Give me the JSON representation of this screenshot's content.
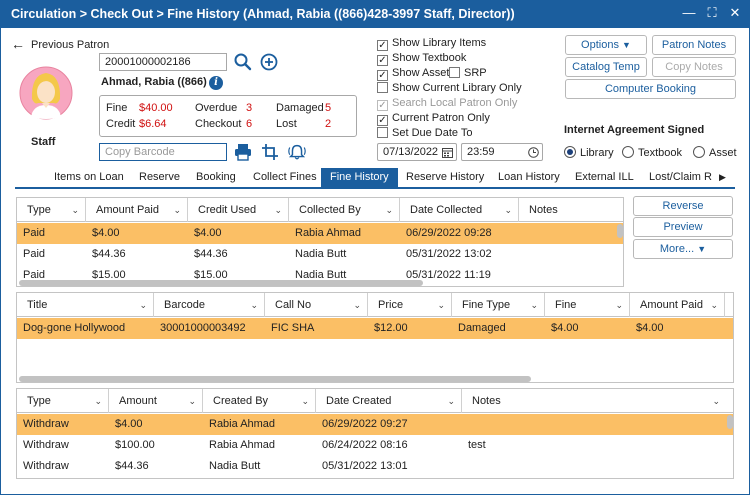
{
  "window": {
    "title": "Circulation > Check Out > Fine History (Ahmad, Rabia ((866)428-3997  Staff, Director))"
  },
  "nav": {
    "previous_patron": "Previous Patron"
  },
  "patron": {
    "barcode": "20001000002186",
    "name": "Ahmad, Rabia ((866)",
    "type": "Staff",
    "fine_label": "Fine",
    "fine_value": "$40.00",
    "credit_label": "Credit",
    "credit_value": "$6.64",
    "overdue_label": "Overdue",
    "overdue_value": "3",
    "checkout_label": "Checkout",
    "checkout_value": "6",
    "damaged_label": "Damaged",
    "damaged_value": "5",
    "lost_label": "Lost",
    "lost_value": "2",
    "copy_barcode_placeholder": "Copy Barcode"
  },
  "options": {
    "show_library_items": "Show Library Items",
    "show_textbook": "Show Textbook",
    "show_asset": "Show Asset",
    "srp": "SRP",
    "show_current_library_only": "Show Current Library Only",
    "search_local_patron_only": "Search Local Patron Only",
    "current_patron_only": "Current Patron Only",
    "set_due_date_to": "Set Due Date To",
    "due_date": "07/13/2022",
    "due_time": "23:59"
  },
  "buttons": {
    "options": "Options",
    "patron_notes": "Patron Notes",
    "catalog_temp": "Catalog Temp",
    "copy_notes": "Copy Notes",
    "computer_booking": "Computer Booking",
    "reverse": "Reverse",
    "preview": "Preview",
    "more": "More..."
  },
  "internet_agreement": {
    "title": "Internet Agreement Signed",
    "options": [
      "Library",
      "Textbook",
      "Asset"
    ],
    "selected": "Library"
  },
  "tabs": [
    "Items on Loan",
    "Reserve",
    "Booking",
    "Collect Fines",
    "Fine History",
    "Reserve History",
    "Loan History",
    "External ILL",
    "Lost/Claim R"
  ],
  "active_tab": "Fine History",
  "fine_table": {
    "columns": [
      "Type",
      "Amount Paid",
      "Credit Used",
      "Collected By",
      "Date Collected",
      "Notes"
    ],
    "rows": [
      [
        "Paid",
        "$4.00",
        "$4.00",
        "Rabia Ahmad",
        "06/29/2022 09:28",
        ""
      ],
      [
        "Paid",
        "$44.36",
        "$44.36",
        "Nadia Butt",
        "05/31/2022 13:02",
        ""
      ],
      [
        "Paid",
        "$15.00",
        "$15.00",
        "Nadia Butt",
        "05/31/2022 11:19",
        ""
      ]
    ]
  },
  "item_table": {
    "columns": [
      "Title",
      "Barcode",
      "Call No",
      "Price",
      "Fine Type",
      "Fine",
      "Amount Paid"
    ],
    "rows": [
      [
        "Dog-gone Hollywood",
        "30001000003492",
        "FIC SHA",
        "$12.00",
        "Damaged",
        "$4.00",
        "$4.00"
      ]
    ]
  },
  "transaction_table": {
    "columns": [
      "Type",
      "Amount",
      "Created By",
      "Date Created",
      "Notes"
    ],
    "rows": [
      [
        "Withdraw",
        "$4.00",
        "Rabia Ahmad",
        "06/29/2022 09:27",
        ""
      ],
      [
        "Withdraw",
        "$100.00",
        "Rabia Ahmad",
        "06/24/2022 08:16",
        "test"
      ],
      [
        "Withdraw",
        "$44.36",
        "Nadia Butt",
        "05/31/2022 13:01",
        ""
      ]
    ]
  },
  "colors": {
    "titlebar": "#1b5e9e",
    "selected_row": "#fbbf65",
    "alert_red": "#d01010",
    "accent_blue": "#1b5e9e"
  }
}
